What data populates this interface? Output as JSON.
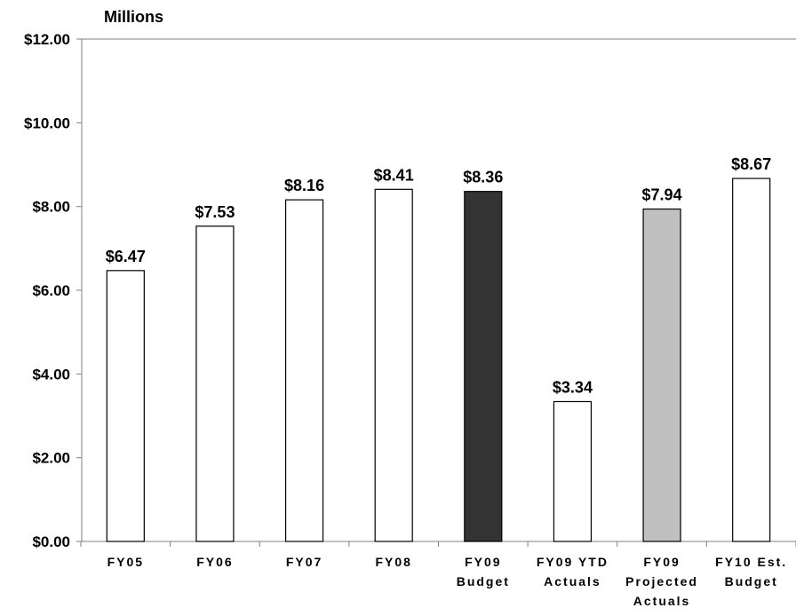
{
  "chart_data": {
    "type": "bar",
    "title": "",
    "xlabel": "",
    "ylabel": "Millions",
    "ylim": [
      0,
      12
    ],
    "y_ticks": [
      "$0.00",
      "$2.00",
      "$4.00",
      "$6.00",
      "$8.00",
      "$10.00",
      "$12.00"
    ],
    "y_tick_values": [
      0,
      2,
      4,
      6,
      8,
      10,
      12
    ],
    "grid": false,
    "legend": "none",
    "categories": [
      [
        "FY05"
      ],
      [
        "FY06"
      ],
      [
        "FY07"
      ],
      [
        "FY08"
      ],
      [
        "FY09",
        "Budget"
      ],
      [
        "FY09 YTD",
        "Actuals"
      ],
      [
        "FY09",
        "Projected",
        "Actuals"
      ],
      [
        "FY10 Est.",
        "Budget"
      ]
    ],
    "values": [
      6.47,
      7.53,
      8.16,
      8.41,
      8.36,
      3.34,
      7.94,
      8.67
    ],
    "data_labels": [
      "$6.47",
      "$7.53",
      "$8.16",
      "$8.41",
      "$8.36",
      "$3.34",
      "$7.94",
      "$8.67"
    ],
    "bar_colors": [
      "#ffffff",
      "#ffffff",
      "#ffffff",
      "#ffffff",
      "#333333",
      "#ffffff",
      "#c0c0c0",
      "#ffffff"
    ],
    "bar_outline": "#000000"
  }
}
